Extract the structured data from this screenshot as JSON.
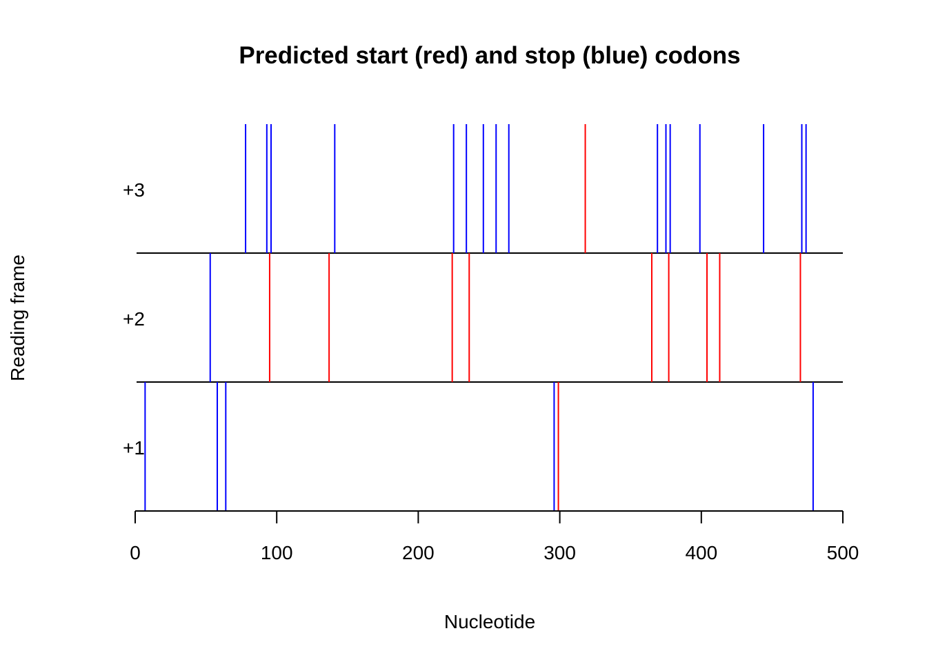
{
  "chart_data": {
    "type": "line",
    "title": "Predicted start (red) and stop (blue) codons",
    "xlabel": "Nucleotide",
    "ylabel": "Reading frame",
    "xlim": [
      0,
      500
    ],
    "x_ticks": [
      "0",
      "100",
      "200",
      "300",
      "400",
      "500"
    ],
    "x_tick_values": [
      0,
      100,
      200,
      300,
      400,
      500
    ],
    "frames": [
      "+1",
      "+2",
      "+3"
    ],
    "grid": false,
    "legend": "none",
    "colors": {
      "start": "#ff0000",
      "stop": "#0000ff",
      "axis": "#000000"
    },
    "series": [
      {
        "frame": "+1",
        "start_codons": [
          299
        ],
        "stop_codons": [
          7,
          58,
          64,
          296,
          479
        ]
      },
      {
        "frame": "+2",
        "start_codons": [
          95,
          137,
          224,
          236,
          365,
          377,
          404,
          413,
          470
        ],
        "stop_codons": [
          53
        ]
      },
      {
        "frame": "+3",
        "start_codons": [
          318
        ],
        "stop_codons": [
          78,
          93,
          96,
          141,
          225,
          234,
          246,
          255,
          264,
          369,
          375,
          378,
          399,
          444,
          471,
          474
        ]
      }
    ]
  }
}
